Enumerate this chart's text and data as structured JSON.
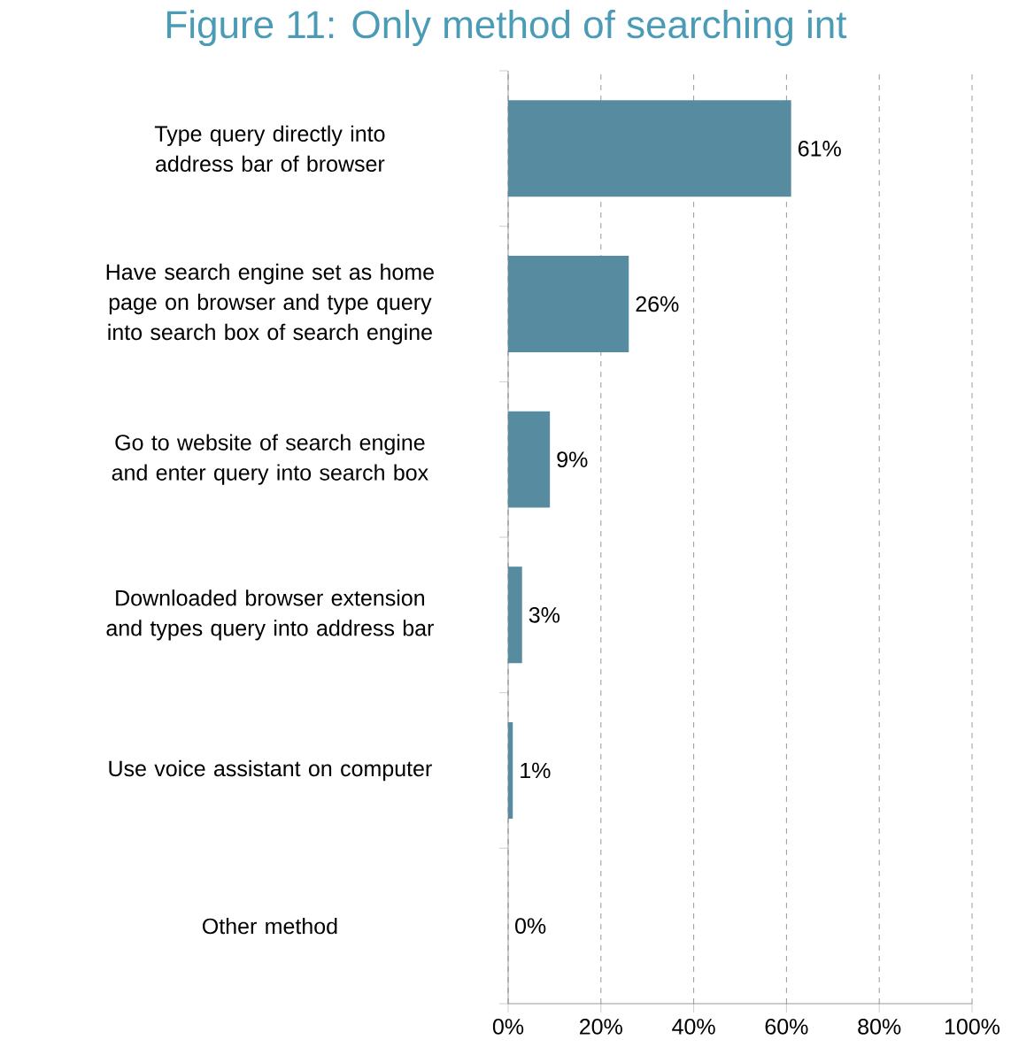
{
  "chart_data": {
    "type": "bar",
    "orientation": "horizontal",
    "title": "Figure 11: Only method of searching int",
    "categories": [
      "Type query directly into address bar of browser",
      "Have search engine set as home page on browser and type query into search box of search engine",
      "Go to website of search engine and enter query into search box",
      "Downloaded browser extension and types query into address bar",
      "Use voice assistant on computer",
      "Other method"
    ],
    "values": [
      61,
      26,
      9,
      3,
      1,
      0
    ],
    "value_labels": [
      "61%",
      "26%",
      "9%",
      "3%",
      "1%",
      "0%"
    ],
    "color": "#568ba0",
    "xlim": [
      0,
      100
    ],
    "xticks": [
      {
        "value": 0,
        "label": "0%"
      },
      {
        "value": 20,
        "label": "20%"
      },
      {
        "value": 40,
        "label": "40%"
      },
      {
        "value": 60,
        "label": "60%"
      },
      {
        "value": 80,
        "label": "80%"
      },
      {
        "value": 100,
        "label": "100%"
      }
    ],
    "grid": "x"
  }
}
